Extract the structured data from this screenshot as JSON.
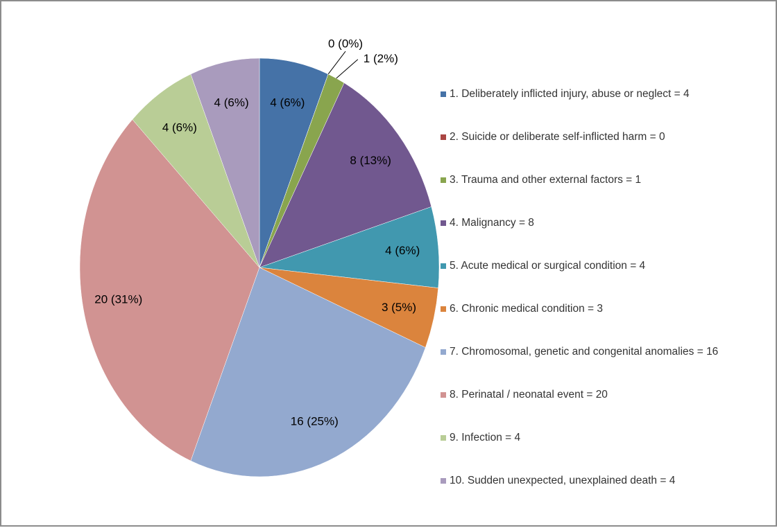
{
  "chart_data": {
    "type": "pie",
    "categories": [
      "1. Deliberately inflicted injury, abuse or neglect = 4",
      "2. Suicide or deliberate self-inflicted harm = 0",
      "3. Trauma and other external factors = 1",
      "4. Malignancy = 8",
      "5. Acute medical or surgical condition = 4",
      "6. Chronic medical condition = 3",
      "7. Chromosomal, genetic and congenital anomalies = 16",
      "8. Perinatal / neonatal event = 20",
      "9. Infection = 4",
      "10. Sudden unexpected, unexplained death = 4"
    ],
    "values": [
      4,
      0,
      1,
      8,
      4,
      3,
      16,
      20,
      4,
      4
    ],
    "value_labels": [
      "4 (6%)",
      "0 (0%)",
      "1 (2%)",
      "8 (13%)",
      "4 (6%)",
      "3 (5%)",
      "16 (25%)",
      "20 (31%)",
      "4 (6%)",
      "4 (6%)"
    ],
    "colors": [
      "#4572a7",
      "#aa4643",
      "#89a54e",
      "#71588f",
      "#4198af",
      "#db843d",
      "#93a9cf",
      "#d19392",
      "#b9cd96",
      "#a99bbd"
    ],
    "legend": "right"
  }
}
